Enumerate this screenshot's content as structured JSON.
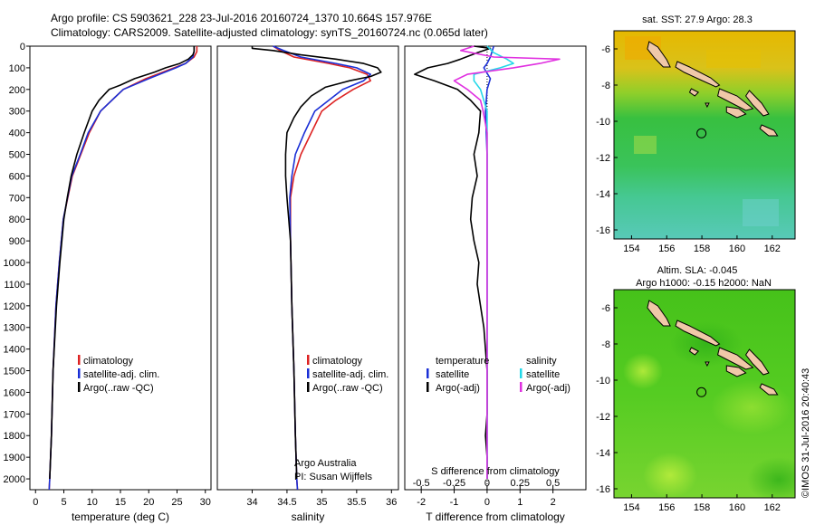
{
  "header": {
    "line1": "Argo profile: CS 5903621_228 23-Jul-2016 20160724_1370 10.664S 157.976E",
    "line2": "Climatology: CARS2009. Satellite-adjusted climatology: synTS_20160724.nc (0.065d later)"
  },
  "colors": {
    "climatology": "#dd2222",
    "satellite": "#1a2fd6",
    "argo": "#000000",
    "sat_salinity": "#22d8e8",
    "argo_salinity": "#e030e0"
  },
  "depth_axis": {
    "range": [
      0,
      2050
    ],
    "ticks": [
      0,
      100,
      200,
      300,
      400,
      500,
      600,
      700,
      800,
      900,
      1000,
      1100,
      1200,
      1300,
      1400,
      1500,
      1600,
      1700,
      1800,
      1900,
      2000
    ],
    "tick_labels": [
      "0",
      "100",
      "200",
      "300",
      "400",
      "500",
      "600",
      "700",
      "800",
      "900",
      "1000",
      "1100",
      "1200",
      "1300",
      "1400",
      "1500",
      "1600",
      "1700",
      "1800",
      "1900",
      "2000"
    ]
  },
  "chart_data": [
    {
      "type": "line",
      "name": "temperature-profile",
      "xlabel": "temperature (deg C)",
      "xlim": [
        -1,
        31
      ],
      "xticks": [
        0,
        5,
        10,
        15,
        20,
        25,
        30
      ],
      "xtick_labels": [
        "0",
        "5",
        "10",
        "15",
        "20",
        "25",
        "30"
      ],
      "ylim": [
        0,
        2050
      ],
      "legend": {
        "position": "lower-middle",
        "items": [
          "climatology",
          "satellite-adj. clim.",
          "Argo(..raw -QC)"
        ]
      },
      "series": [
        {
          "name": "climatology",
          "y": [
            0,
            25,
            50,
            80,
            100,
            150,
            200,
            300,
            400,
            500,
            600,
            800,
            1000,
            1200,
            1500,
            1800,
            2000,
            2050
          ],
          "x": [
            28.5,
            28.5,
            28.0,
            26.5,
            24.5,
            19.5,
            15.5,
            11.5,
            9.5,
            8.0,
            6.5,
            4.9,
            4.2,
            3.6,
            3.1,
            2.8,
            2.5,
            2.4
          ]
        },
        {
          "name": "satellite-adj. clim.",
          "y": [
            0,
            25,
            50,
            80,
            100,
            150,
            200,
            300,
            400,
            500,
            600,
            800,
            1000,
            1200,
            1500,
            1800,
            2000,
            2050
          ],
          "x": [
            28.0,
            28.0,
            27.8,
            26.5,
            24.8,
            20.0,
            15.5,
            11.5,
            9.3,
            7.9,
            6.4,
            4.9,
            4.2,
            3.6,
            3.1,
            2.8,
            2.5,
            2.4
          ]
        },
        {
          "name": "Argo(..raw -QC)",
          "y": [
            0,
            5,
            25,
            40,
            60,
            80,
            100,
            120,
            150,
            180,
            200,
            250,
            300,
            400,
            500,
            600,
            700,
            800,
            1000,
            1200,
            1500,
            1800,
            2000
          ],
          "x": [
            28.0,
            28.0,
            28.0,
            27.8,
            27.0,
            25.5,
            23.0,
            21.0,
            17.5,
            15.0,
            13.0,
            11.2,
            10.0,
            8.6,
            7.3,
            6.3,
            5.6,
            5.0,
            4.3,
            3.7,
            3.1,
            2.8,
            2.5
          ]
        }
      ]
    },
    {
      "type": "line",
      "name": "salinity-profile",
      "xlabel": "salinity",
      "xlim": [
        33.5,
        36.1
      ],
      "xticks": [
        34,
        34.5,
        35,
        35.5,
        36
      ],
      "xtick_labels": [
        "34",
        "34.5",
        "35",
        "35.5",
        "36"
      ],
      "ylim": [
        0,
        2050
      ],
      "legend": {
        "position": "lower-right",
        "items": [
          "climatology",
          "satellite-adj. clim.",
          "Argo(..raw -QC)"
        ]
      },
      "annotation": [
        "Argo Australia",
        "PI: Susan Wijffels"
      ],
      "series": [
        {
          "name": "climatology",
          "y": [
            0,
            20,
            50,
            80,
            100,
            130,
            160,
            200,
            250,
            300,
            400,
            500,
            600,
            700,
            900,
            1200,
            1500,
            1800,
            2000,
            2050
          ],
          "x": [
            34.3,
            34.4,
            34.6,
            35.1,
            35.4,
            35.65,
            35.7,
            35.45,
            35.2,
            35.0,
            34.85,
            34.7,
            34.6,
            34.55,
            34.55,
            34.57,
            34.6,
            34.62,
            34.64,
            34.65
          ]
        },
        {
          "name": "satellite-adj. clim.",
          "y": [
            0,
            20,
            50,
            80,
            100,
            130,
            160,
            200,
            250,
            300,
            400,
            500,
            600,
            700,
            900,
            1200,
            1500,
            1800,
            2000,
            2050
          ],
          "x": [
            34.3,
            34.45,
            34.7,
            35.2,
            35.5,
            35.7,
            35.6,
            35.3,
            35.1,
            34.9,
            34.75,
            34.62,
            34.57,
            34.54,
            34.55,
            34.57,
            34.6,
            34.62,
            34.64,
            34.65
          ]
        },
        {
          "name": "Argo(..raw -QC)",
          "y": [
            0,
            10,
            20,
            40,
            60,
            80,
            100,
            120,
            140,
            160,
            190,
            230,
            280,
            330,
            400,
            500,
            600,
            700,
            900,
            1200,
            1500,
            1800,
            2000
          ],
          "x": [
            34.0,
            34.0,
            34.3,
            34.7,
            35.2,
            35.6,
            35.8,
            35.85,
            35.7,
            35.4,
            35.05,
            34.85,
            34.7,
            34.6,
            34.5,
            34.48,
            34.48,
            34.5,
            34.55,
            34.57,
            34.6,
            34.62,
            34.64
          ]
        }
      ]
    },
    {
      "type": "line",
      "name": "difference-profile",
      "xlabel": "T difference from climatology",
      "xlabel_top": "S difference from climatology",
      "xlim": [
        -2.5,
        3.0
      ],
      "xticks": [
        -2,
        -1,
        0,
        1,
        2
      ],
      "xtick_labels": [
        "-2",
        "-1",
        "0",
        "1",
        "2"
      ],
      "xticks_s": [
        -0.5,
        -0.25,
        0,
        0.25,
        0.5
      ],
      "xtick_s_labels": [
        "-0.5",
        "-0.25",
        "0",
        "0.25",
        "0.5"
      ],
      "ylim": [
        0,
        2050
      ],
      "legend": {
        "position": "lower-middle",
        "headers": [
          "temperature",
          "salinity"
        ],
        "items": [
          "satellite",
          "Argo(-adj)",
          "satellite",
          "Argo(-adj)"
        ]
      },
      "series": [
        {
          "name": "temperature satellite",
          "y": [
            0,
            50,
            80,
            100,
            150,
            200,
            300,
            500,
            800,
            1000,
            1500,
            2000
          ],
          "x": [
            0.2,
            0.1,
            0.0,
            -0.1,
            0.1,
            0.0,
            -0.05,
            0.0,
            0.0,
            0.0,
            0.0,
            0.0
          ]
        },
        {
          "name": "temperature Argo(-adj)",
          "y": [
            0,
            10,
            30,
            60,
            80,
            100,
            130,
            160,
            200,
            250,
            300,
            400,
            500,
            600,
            700,
            800,
            900,
            1000,
            1100,
            1200,
            1300,
            1400,
            1500,
            1600,
            1700,
            1800,
            1900,
            2000
          ],
          "x": [
            -0.4,
            0.1,
            -0.3,
            -0.8,
            -1.2,
            -1.8,
            -2.2,
            -1.6,
            -0.9,
            -0.5,
            -0.2,
            -0.25,
            -0.4,
            -0.3,
            -0.45,
            -0.5,
            -0.4,
            -0.25,
            -0.3,
            -0.2,
            -0.1,
            -0.05,
            0.0,
            0.0,
            0.0,
            -0.05,
            0.0,
            0.0
          ]
        },
        {
          "name": "salinity satellite",
          "y": [
            0,
            30,
            60,
            80,
            100,
            130,
            160,
            200,
            300,
            400,
            600,
            800,
            1000,
            1500,
            2000
          ],
          "x": [
            0.0,
            0.05,
            0.15,
            0.2,
            0.1,
            -0.1,
            -0.1,
            -0.05,
            0.0,
            0.0,
            0.0,
            0.0,
            0.0,
            0.0,
            0.0
          ]
        },
        {
          "name": "salinity Argo(-adj)",
          "y": [
            0,
            20,
            50,
            60,
            80,
            100,
            130,
            160,
            200,
            250,
            300,
            400,
            500,
            600,
            800,
            1000,
            1200,
            1500,
            1800,
            2000
          ],
          "x": [
            -0.1,
            -0.2,
            0.05,
            0.55,
            0.4,
            0.2,
            -0.15,
            -0.25,
            -0.15,
            -0.05,
            -0.03,
            0.0,
            0.0,
            0.0,
            0.0,
            0.0,
            0.0,
            0.0,
            0.0,
            0.0
          ]
        }
      ]
    },
    {
      "type": "heatmap",
      "name": "sst-map",
      "title": "sat. SST: 27.9  Argo: 28.3",
      "x_range": [
        153,
        163.3
      ],
      "y_range": [
        -16.5,
        -5.0
      ],
      "xticks": [
        154,
        156,
        158,
        160,
        162
      ],
      "xtick_labels": [
        "154",
        "156",
        "158",
        "160",
        "162"
      ],
      "yticks": [
        -6,
        -8,
        -10,
        -12,
        -14,
        -16
      ],
      "ytick_labels": [
        "-6",
        "-8",
        "-10",
        "-12",
        "-14",
        "-16"
      ],
      "argo_position": {
        "lon": 157.976,
        "lat": -10.664
      }
    },
    {
      "type": "heatmap",
      "name": "sla-map",
      "title_line1": "Altim. SLA: -0.045",
      "title_line2": "Argo h1000: -0.15  h2000: NaN",
      "x_range": [
        153,
        163.3
      ],
      "y_range": [
        -16.5,
        -5.0
      ],
      "xticks": [
        154,
        156,
        158,
        160,
        162
      ],
      "xtick_labels": [
        "154",
        "156",
        "158",
        "160",
        "162"
      ],
      "yticks": [
        -6,
        -8,
        -10,
        -12,
        -14,
        -16
      ],
      "ytick_labels": [
        "-6",
        "-8",
        "-10",
        "-12",
        "-14",
        "-16"
      ],
      "argo_position": {
        "lon": 157.976,
        "lat": -10.664
      }
    }
  ],
  "footer": {
    "stamp": "©IMOS 31-Jul-2016 20:40:43"
  }
}
